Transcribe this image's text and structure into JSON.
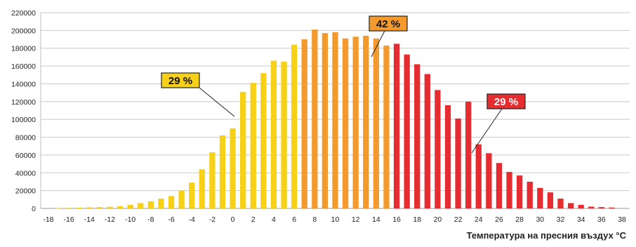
{
  "chart_data": {
    "type": "bar",
    "xlabel": "Температура на пресния въздух °C",
    "ylabel": "",
    "ylim": [
      0,
      220000
    ],
    "yticks": [
      0,
      20000,
      40000,
      60000,
      80000,
      100000,
      120000,
      140000,
      160000,
      180000,
      200000,
      220000
    ],
    "xticks": [
      -18,
      -16,
      -14,
      -12,
      -10,
      -8,
      -6,
      -4,
      -2,
      0,
      2,
      4,
      6,
      8,
      10,
      12,
      14,
      16,
      18,
      20,
      22,
      24,
      26,
      28,
      30,
      32,
      34,
      36,
      38
    ],
    "grid": true,
    "categories": [
      -17,
      -16,
      -15,
      -14,
      -13,
      -12,
      -11,
      -10,
      -9,
      -8,
      -7,
      -6,
      -5,
      -4,
      -3,
      -2,
      -1,
      0,
      1,
      2,
      3,
      4,
      5,
      6,
      7,
      8,
      9,
      10,
      11,
      12,
      13,
      14,
      15,
      16,
      17,
      18,
      19,
      20,
      21,
      22,
      23,
      24,
      25,
      26,
      27,
      28,
      29,
      30,
      31,
      32,
      33,
      34,
      35,
      36,
      37
    ],
    "values": [
      300,
      500,
      800,
      1200,
      1500,
      1800,
      2500,
      4000,
      6000,
      8000,
      11000,
      14000,
      20000,
      29000,
      44000,
      63000,
      82000,
      90000,
      131000,
      141000,
      152000,
      166000,
      165000,
      184000,
      190000,
      201000,
      197000,
      198000,
      191000,
      193000,
      194000,
      191000,
      183000,
      185000,
      173000,
      162000,
      151000,
      133000,
      116000,
      101000,
      120000,
      72000,
      62000,
      51000,
      41000,
      37000,
      30000,
      23000,
      18000,
      11000,
      6000,
      4000,
      2000,
      1500,
      1000
    ],
    "colors": {
      "yellow": "#f7d117",
      "orange": "#f39a2f",
      "red": "#e52c30"
    },
    "ranges": {
      "yellow_max": 6,
      "orange_max": 15
    },
    "annotations": [
      {
        "label": "29 %",
        "bg": "#f7d117",
        "fg": "#111111"
      },
      {
        "label": "42 %",
        "bg": "#f39a2f",
        "fg": "#111111"
      },
      {
        "label": "29 %",
        "bg": "#e52c30",
        "fg": "#ffffff"
      }
    ]
  }
}
